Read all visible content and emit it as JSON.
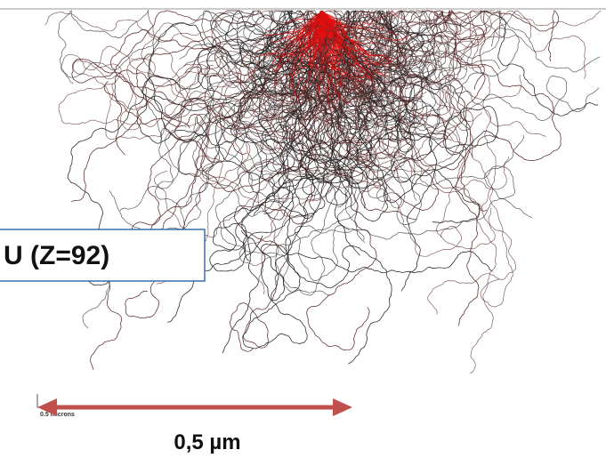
{
  "figure": {
    "material_label": "U (Z=92)",
    "scale_bar_label": "0.5 microns",
    "scale_caption": "0,5 µm"
  }
}
